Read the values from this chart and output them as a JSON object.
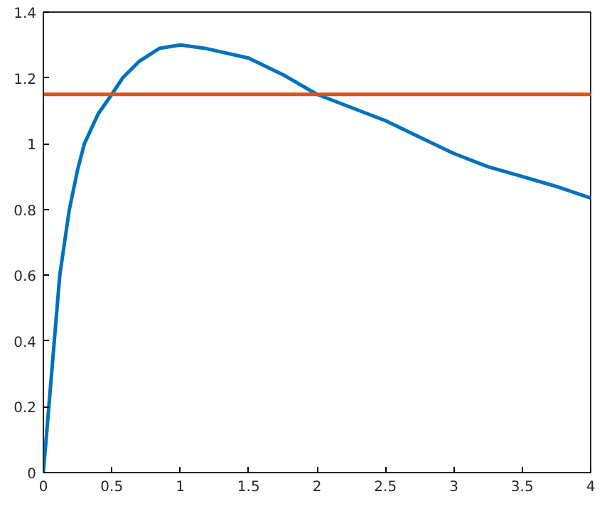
{
  "chart_data": {
    "type": "line",
    "xlim": [
      0,
      4
    ],
    "ylim": [
      0,
      1.4
    ],
    "xticks": [
      0,
      0.5,
      1,
      1.5,
      2,
      2.5,
      3,
      3.5,
      4
    ],
    "yticks": [
      0,
      0.2,
      0.4,
      0.6,
      0.8,
      1,
      1.2,
      1.4
    ],
    "grid": false,
    "line_style": "solid",
    "marker": "none",
    "series": [
      {
        "color": "#0072bd",
        "x": [
          0,
          0.02,
          0.04,
          0.08,
          0.12,
          0.19,
          0.25,
          0.3,
          0.4,
          0.5,
          0.58,
          0.7,
          0.85,
          1,
          1.18,
          1.5,
          1.75,
          2,
          2.25,
          2.5,
          2.75,
          3,
          3.25,
          3.5,
          3.75,
          4
        ],
        "values": [
          0,
          0.1,
          0.2,
          0.4,
          0.6,
          0.8,
          0.92,
          1.0,
          1.09,
          1.15,
          1.2,
          1.25,
          1.29,
          1.3,
          1.29,
          1.26,
          1.21,
          1.15,
          1.11,
          1.07,
          1.02,
          0.97,
          0.93,
          0.9,
          0.87,
          0.835
        ]
      },
      {
        "color": "#d95319",
        "x": [
          0,
          4
        ],
        "values": [
          1.15,
          1.15
        ]
      }
    ]
  }
}
